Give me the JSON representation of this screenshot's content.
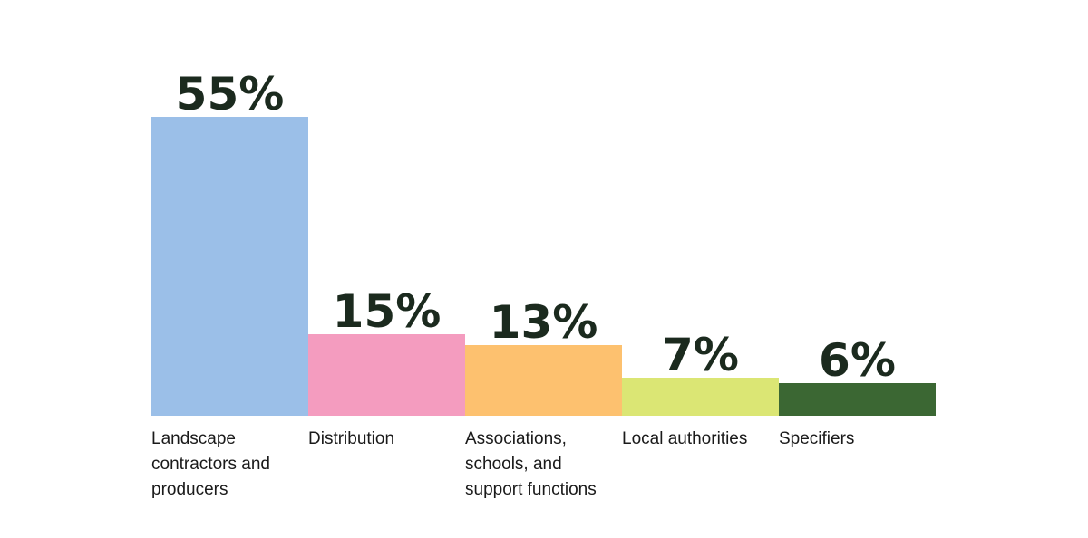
{
  "chart_data": {
    "type": "bar",
    "categories": [
      "Landscape contractors and producers",
      "Distribution",
      "Associations, schools, and support functions",
      "Local authorities",
      "Specifiers"
    ],
    "values": [
      55,
      15,
      13,
      7,
      6
    ],
    "value_labels": [
      "55%",
      "15%",
      "13%",
      "7%",
      "6%"
    ],
    "colors": [
      "#9bbfe8",
      "#f49cbf",
      "#fdc16f",
      "#dbe674",
      "#3b6733"
    ],
    "title": "",
    "xlabel": "",
    "ylabel": "",
    "ylim": [
      0,
      55
    ],
    "grid": false,
    "legend": "none"
  }
}
